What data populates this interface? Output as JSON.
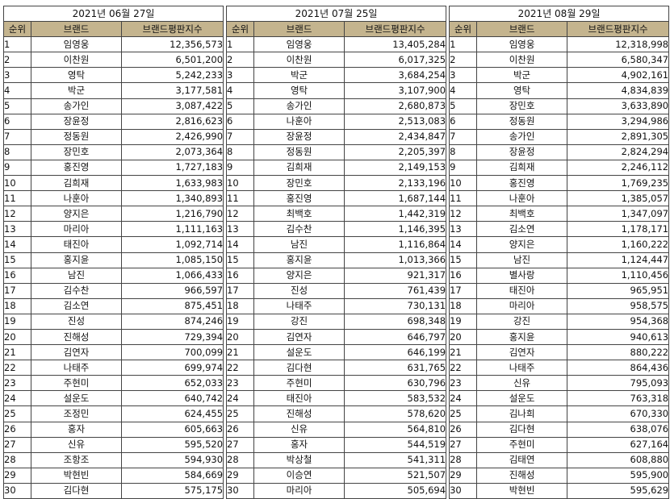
{
  "tables": [
    {
      "date": "2021년 06월 27일",
      "headers": [
        "순위",
        "브랜드",
        "브랜드평판지수"
      ],
      "rows": [
        [
          "1",
          "임영웅",
          "12,356,573"
        ],
        [
          "2",
          "이찬원",
          "6,501,200"
        ],
        [
          "3",
          "영탁",
          "5,242,233"
        ],
        [
          "4",
          "박군",
          "3,177,581"
        ],
        [
          "5",
          "송가인",
          "3,087,422"
        ],
        [
          "6",
          "장윤정",
          "2,816,623"
        ],
        [
          "7",
          "정동원",
          "2,426,990"
        ],
        [
          "8",
          "장민호",
          "2,073,364"
        ],
        [
          "9",
          "홍진영",
          "1,727,183"
        ],
        [
          "10",
          "김희재",
          "1,633,983"
        ],
        [
          "11",
          "나훈아",
          "1,340,893"
        ],
        [
          "12",
          "양지은",
          "1,216,790"
        ],
        [
          "13",
          "마리아",
          "1,111,163"
        ],
        [
          "14",
          "태진아",
          "1,092,714"
        ],
        [
          "15",
          "홍지윤",
          "1,085,150"
        ],
        [
          "16",
          "남진",
          "1,066,433"
        ],
        [
          "17",
          "김수찬",
          "966,597"
        ],
        [
          "18",
          "김소연",
          "875,451"
        ],
        [
          "19",
          "진성",
          "874,246"
        ],
        [
          "20",
          "진해성",
          "729,394"
        ],
        [
          "21",
          "김연자",
          "700,099"
        ],
        [
          "22",
          "나태주",
          "699,974"
        ],
        [
          "23",
          "주현미",
          "652,033"
        ],
        [
          "24",
          "설운도",
          "640,742"
        ],
        [
          "25",
          "조정민",
          "624,455"
        ],
        [
          "26",
          "홍자",
          "605,663"
        ],
        [
          "27",
          "신유",
          "595,520"
        ],
        [
          "28",
          "조항조",
          "594,930"
        ],
        [
          "29",
          "박현빈",
          "584,669"
        ],
        [
          "30",
          "김다현",
          "575,175"
        ]
      ]
    },
    {
      "date": "2021년 07월 25일",
      "headers": [
        "순위",
        "브랜드",
        "브랜드평판지수"
      ],
      "rows": [
        [
          "1",
          "임영웅",
          "13,405,284"
        ],
        [
          "2",
          "이찬원",
          "6,017,325"
        ],
        [
          "3",
          "박군",
          "3,684,254"
        ],
        [
          "4",
          "영탁",
          "3,107,900"
        ],
        [
          "5",
          "송가인",
          "2,680,873"
        ],
        [
          "6",
          "나훈아",
          "2,513,083"
        ],
        [
          "7",
          "장윤정",
          "2,434,847"
        ],
        [
          "8",
          "정동원",
          "2,205,397"
        ],
        [
          "9",
          "김희재",
          "2,149,153"
        ],
        [
          "10",
          "장민호",
          "2,133,196"
        ],
        [
          "11",
          "홍진영",
          "1,687,144"
        ],
        [
          "12",
          "최백호",
          "1,442,319"
        ],
        [
          "13",
          "김수찬",
          "1,146,395"
        ],
        [
          "14",
          "남진",
          "1,116,864"
        ],
        [
          "15",
          "홍지윤",
          "1,013,366"
        ],
        [
          "16",
          "양지은",
          "921,317"
        ],
        [
          "17",
          "진성",
          "761,439"
        ],
        [
          "18",
          "나태주",
          "730,131"
        ],
        [
          "19",
          "강진",
          "698,348"
        ],
        [
          "20",
          "김연자",
          "646,797"
        ],
        [
          "21",
          "설운도",
          "646,199"
        ],
        [
          "22",
          "김다현",
          "631,765"
        ],
        [
          "23",
          "주현미",
          "630,796"
        ],
        [
          "24",
          "태진아",
          "583,532"
        ],
        [
          "25",
          "진해성",
          "578,620"
        ],
        [
          "26",
          "신유",
          "564,810"
        ],
        [
          "27",
          "홍자",
          "544,519"
        ],
        [
          "28",
          "박상철",
          "541,311"
        ],
        [
          "29",
          "이승연",
          "521,507"
        ],
        [
          "30",
          "마리아",
          "505,694"
        ]
      ]
    },
    {
      "date": "2021년 08월 29일",
      "headers": [
        "순위",
        "브랜드",
        "브랜드평판지수"
      ],
      "rows": [
        [
          "1",
          "임영웅",
          "12,318,998"
        ],
        [
          "2",
          "이찬원",
          "6,580,347"
        ],
        [
          "3",
          "박군",
          "4,902,161"
        ],
        [
          "4",
          "영탁",
          "4,834,839"
        ],
        [
          "5",
          "장민호",
          "3,633,890"
        ],
        [
          "6",
          "정동원",
          "3,294,986"
        ],
        [
          "7",
          "송가인",
          "2,891,305"
        ],
        [
          "8",
          "장윤정",
          "2,824,294"
        ],
        [
          "9",
          "김희재",
          "2,246,112"
        ],
        [
          "10",
          "홍진영",
          "1,769,235"
        ],
        [
          "11",
          "나훈아",
          "1,385,057"
        ],
        [
          "12",
          "최백호",
          "1,347,097"
        ],
        [
          "13",
          "김소연",
          "1,178,171"
        ],
        [
          "14",
          "양지은",
          "1,160,222"
        ],
        [
          "15",
          "남진",
          "1,124,447"
        ],
        [
          "16",
          "별사랑",
          "1,110,456"
        ],
        [
          "17",
          "태진아",
          "965,951"
        ],
        [
          "18",
          "마리아",
          "958,575"
        ],
        [
          "19",
          "강진",
          "954,368"
        ],
        [
          "20",
          "홍지윤",
          "940,613"
        ],
        [
          "21",
          "김연자",
          "880,222"
        ],
        [
          "22",
          "나태주",
          "864,436"
        ],
        [
          "23",
          "신유",
          "795,093"
        ],
        [
          "24",
          "설운도",
          "763,318"
        ],
        [
          "25",
          "김나희",
          "670,330"
        ],
        [
          "26",
          "김다현",
          "638,076"
        ],
        [
          "27",
          "주현미",
          "627,164"
        ],
        [
          "28",
          "김태연",
          "608,880"
        ],
        [
          "29",
          "진해성",
          "595,900"
        ],
        [
          "30",
          "박현빈",
          "595,629"
        ]
      ]
    }
  ]
}
